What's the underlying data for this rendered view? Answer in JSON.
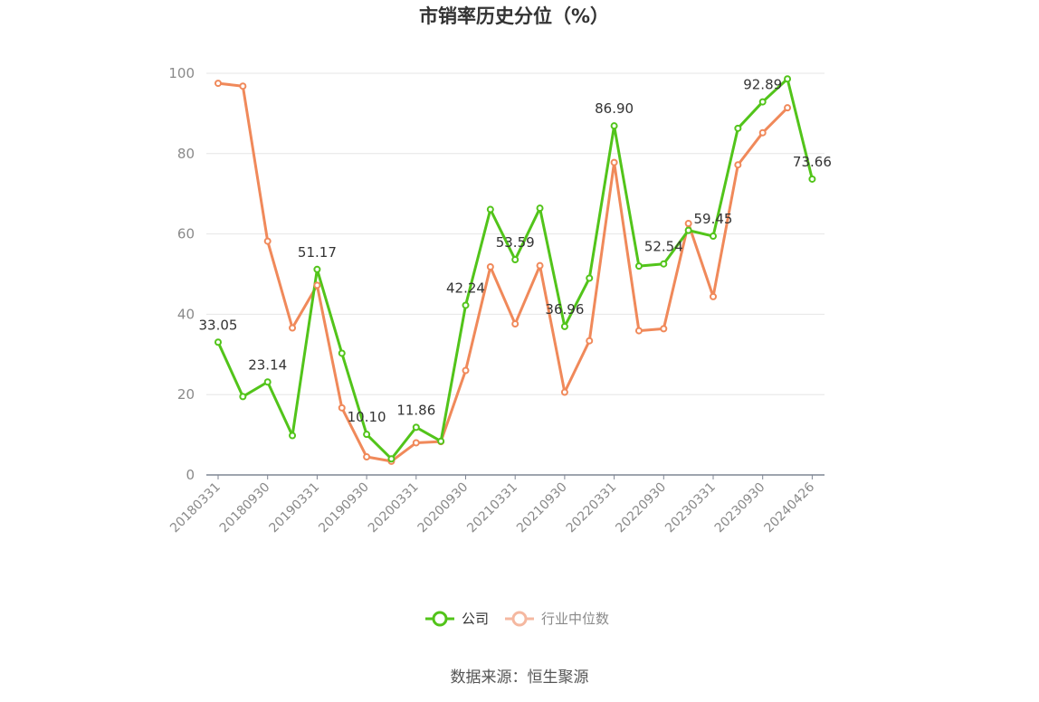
{
  "chart_data": {
    "type": "line",
    "title": "市销率历史分位（%）",
    "source": "数据来源：恒生聚源",
    "ylim": [
      0,
      100
    ],
    "yticks": [
      "0",
      "20",
      "40",
      "60",
      "80",
      "100"
    ],
    "grid": true,
    "legend_position": "bottom-center",
    "x": [
      "20180331",
      "20180630",
      "20180930",
      "20181231",
      "20190331",
      "20190630",
      "20190930",
      "20191231",
      "20200331",
      "20200630",
      "20200930",
      "20201231",
      "20210331",
      "20210630",
      "20210930",
      "20211231",
      "20220331",
      "20220630",
      "20220930",
      "20221231",
      "20230331",
      "20230630",
      "20230930",
      "20231231",
      "20240426"
    ],
    "x_tick_labels": [
      "20180331",
      "20180930",
      "20190331",
      "20190930",
      "20200331",
      "20200930",
      "20210331",
      "20210930",
      "20220331",
      "20220930",
      "20230331",
      "20230930",
      "20240426"
    ],
    "series": [
      {
        "name": "公司",
        "color": "#52c41a",
        "values": [
          33.05,
          19.5,
          23.14,
          9.8,
          51.17,
          30.3,
          10.1,
          4.0,
          11.86,
          8.4,
          42.24,
          66.1,
          53.59,
          66.4,
          36.96,
          49.0,
          86.9,
          52.0,
          52.54,
          60.9,
          59.45,
          86.3,
          92.89,
          98.6,
          73.66
        ],
        "labels": {
          "0": "33.05",
          "2": "23.14",
          "4": "51.17",
          "6": "10.10",
          "8": "11.86",
          "10": "42.24",
          "12": "53.59",
          "14": "36.96",
          "16": "86.90",
          "18": "52.54",
          "20": "59.45",
          "22": "92.89",
          "24": "73.66"
        }
      },
      {
        "name": "行业中位数",
        "color": "#f0895a",
        "values": [
          97.5,
          96.8,
          58.2,
          36.6,
          47.2,
          16.7,
          4.5,
          3.4,
          8.0,
          8.3,
          26.0,
          51.8,
          37.6,
          52.1,
          20.6,
          33.4,
          77.8,
          35.9,
          36.4,
          62.6,
          44.4,
          77.2,
          85.2,
          91.4,
          null
        ]
      }
    ]
  }
}
